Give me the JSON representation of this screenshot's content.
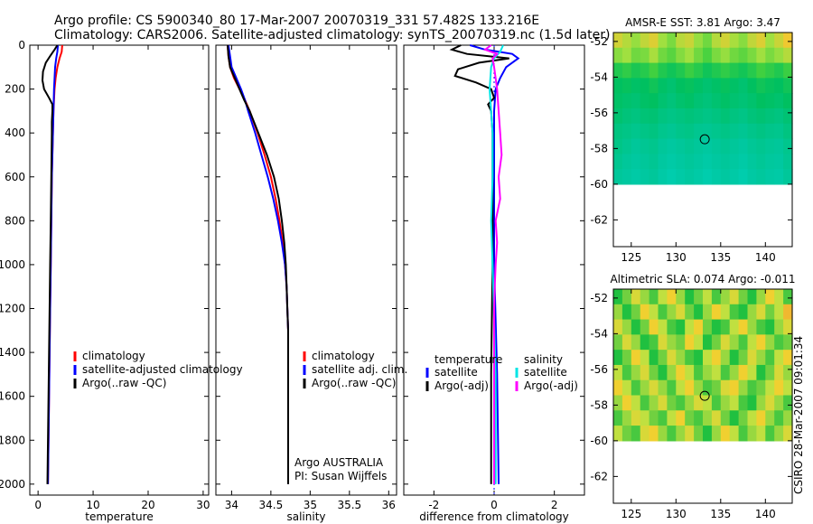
{
  "header": {
    "line1": "Argo profile: CS 5900340_80 17-Mar-2007 20070319_331 57.482S 133.216E",
    "line2": "Climatology: CARS2006. Satellite-adjusted climatology: synTS_20070319.nc (1.5d later)"
  },
  "side_label": "CSIRO 28-Mar-2007 09:01:34",
  "colors": {
    "climatology": "#ff0000",
    "satellite": "#0000ff",
    "argo": "#000000",
    "salinity_satellite": "#00e5e5",
    "salinity_argo": "#ff00ff"
  },
  "chart_data": [
    {
      "type": "line",
      "xlabel": "temperature",
      "ylabel": "",
      "xlim": [
        -1.5,
        31
      ],
      "ylim": [
        2050,
        0
      ],
      "xticks": [
        0,
        10,
        20,
        30
      ],
      "yticks": [
        0,
        200,
        400,
        600,
        800,
        1000,
        1200,
        1400,
        1600,
        1800,
        2000
      ],
      "legend": [
        "climatology",
        "satellite-adjusted climatology",
        "Argo(..raw -QC)"
      ],
      "series": [
        {
          "name": "climatology",
          "color": "#ff0000",
          "depth": [
            0,
            30,
            60,
            100,
            150,
            200,
            300,
            400,
            600,
            800,
            1000,
            1200,
            1400,
            1600,
            1800,
            2000
          ],
          "values": [
            4.4,
            4.3,
            3.9,
            3.5,
            3.2,
            3.0,
            2.8,
            2.7,
            2.5,
            2.4,
            2.3,
            2.2,
            2.1,
            2.0,
            1.9,
            1.8
          ]
        },
        {
          "name": "satellite-adjusted climatology",
          "color": "#0000ff",
          "depth": [
            0,
            30,
            60,
            100,
            150,
            200,
            300,
            400,
            600,
            800,
            1000,
            1200,
            1400,
            1600,
            1800,
            2000
          ],
          "values": [
            3.6,
            3.5,
            3.3,
            3.1,
            3.0,
            2.9,
            2.8,
            2.7,
            2.5,
            2.4,
            2.3,
            2.2,
            2.1,
            2.0,
            1.9,
            1.8
          ]
        },
        {
          "name": "Argo(..raw -QC)",
          "color": "#000000",
          "depth": [
            0,
            20,
            50,
            80,
            120,
            160,
            200,
            240,
            270,
            300,
            350,
            400,
            600,
            800,
            1000,
            1200,
            1400,
            1600,
            1800,
            2000
          ],
          "values": [
            3.5,
            3.0,
            2.2,
            1.4,
            0.9,
            0.8,
            1.1,
            2.0,
            2.6,
            2.6,
            2.5,
            2.5,
            2.4,
            2.3,
            2.2,
            2.1,
            2.0,
            1.9,
            1.8,
            1.7
          ]
        }
      ]
    },
    {
      "type": "line",
      "xlabel": "salinity",
      "ylabel": "",
      "xlim": [
        33.8,
        36.1
      ],
      "ylim": [
        2050,
        0
      ],
      "xticks": [
        34,
        34.5,
        35,
        35.5,
        36
      ],
      "legend": [
        "climatology",
        "satellite adj. clim.",
        "Argo(..raw -QC)"
      ],
      "annotation": [
        "Argo AUSTRALIA",
        "PI: Susan Wijffels"
      ],
      "series": [
        {
          "name": "climatology",
          "color": "#ff0000",
          "depth": [
            0,
            50,
            100,
            150,
            200,
            250,
            300,
            400,
            500,
            600,
            700,
            800,
            900,
            1000,
            1100,
            1200,
            1300,
            1400,
            1600,
            1800,
            2000
          ],
          "values": [
            33.95,
            33.96,
            33.98,
            34.03,
            34.1,
            34.17,
            34.23,
            34.33,
            34.42,
            34.5,
            34.56,
            34.61,
            34.65,
            34.68,
            34.7,
            34.71,
            34.72,
            34.72,
            34.72,
            34.72,
            34.72
          ]
        },
        {
          "name": "satellite adj. clim.",
          "color": "#0000ff",
          "depth": [
            0,
            50,
            100,
            150,
            200,
            250,
            300,
            400,
            500,
            600,
            700,
            800,
            900,
            1000,
            1100,
            1200,
            1300,
            1400,
            1600,
            1800,
            2000
          ],
          "values": [
            33.96,
            33.98,
            34.0,
            34.06,
            34.12,
            34.17,
            34.21,
            34.3,
            34.38,
            34.46,
            34.53,
            34.59,
            34.64,
            34.68,
            34.7,
            34.71,
            34.72,
            34.72,
            34.72,
            34.72,
            34.72
          ]
        },
        {
          "name": "Argo(..raw -QC)",
          "color": "#000000",
          "depth": [
            0,
            50,
            100,
            150,
            200,
            250,
            300,
            400,
            500,
            600,
            700,
            800,
            900,
            1000,
            1100,
            1200,
            1300,
            1400,
            1600,
            1800,
            2000
          ],
          "values": [
            33.95,
            33.96,
            33.98,
            34.04,
            34.1,
            34.16,
            34.23,
            34.34,
            34.45,
            34.54,
            34.6,
            34.64,
            34.67,
            34.69,
            34.7,
            34.71,
            34.72,
            34.72,
            34.72,
            34.72,
            34.72
          ]
        }
      ]
    },
    {
      "type": "line",
      "xlabel": "difference from climatology",
      "ylabel": "",
      "xlim": [
        -3,
        3
      ],
      "ylim": [
        2050,
        0
      ],
      "xticks": [
        -2,
        0,
        2
      ],
      "legend_groups": [
        {
          "heading": "temperature",
          "items": [
            "satellite",
            "Argo(-adj)"
          ]
        },
        {
          "heading": "salinity",
          "items": [
            "satellite",
            "Argo(-adj)"
          ]
        }
      ],
      "series": [
        {
          "name": "temperature satellite",
          "color": "#0000ff",
          "depth": [
            0,
            20,
            40,
            60,
            80,
            100,
            150,
            200,
            300,
            500,
            1000,
            1500,
            2000
          ],
          "values": [
            -0.8,
            -0.3,
            0.6,
            0.8,
            0.6,
            0.4,
            0.2,
            0.05,
            0.0,
            0.0,
            0.0,
            0.1,
            0.15
          ]
        },
        {
          "name": "temperature Argo(-adj)",
          "color": "#000000",
          "depth": [
            0,
            20,
            40,
            60,
            80,
            110,
            140,
            170,
            200,
            240,
            270,
            300,
            400,
            600,
            1000,
            1500,
            2000
          ],
          "values": [
            -1.1,
            -1.4,
            -0.9,
            0.5,
            -0.5,
            -1.2,
            -1.3,
            -0.6,
            -0.1,
            0.0,
            -0.2,
            -0.1,
            -0.05,
            -0.05,
            -0.05,
            -0.1,
            -0.1
          ]
        },
        {
          "name": "salinity satellite",
          "color": "#00e5e5",
          "depth": [
            0,
            30,
            60,
            100,
            200,
            300,
            400,
            600,
            800,
            1000,
            1500,
            2000
          ],
          "values": [
            0.3,
            0.2,
            0.0,
            -0.1,
            -0.15,
            -0.1,
            -0.05,
            -0.05,
            -0.1,
            -0.05,
            0.05,
            0.05
          ]
        },
        {
          "name": "salinity Argo(-adj)",
          "color": "#ff00ff",
          "depth": [
            0,
            20,
            40,
            60,
            100,
            200,
            300,
            400,
            500,
            600,
            700,
            800,
            900,
            1000,
            1100,
            1200,
            1500,
            2000
          ],
          "values": [
            -0.1,
            -0.3,
            0.1,
            -0.05,
            0.0,
            0.1,
            0.15,
            0.2,
            0.25,
            0.15,
            0.2,
            0.05,
            0.1,
            0.05,
            0.02,
            0.0,
            0.0,
            0.0
          ]
        }
      ]
    },
    {
      "type": "heatmap",
      "title": "AMSR-E SST: 3.81  Argo: 3.47",
      "xlim": [
        123,
        143
      ],
      "ylim": [
        -63.5,
        -51.5
      ],
      "xticks": [
        125,
        130,
        135,
        140
      ],
      "yticks": [
        -52,
        -54,
        -56,
        -58,
        -60,
        -62
      ],
      "data_extent_lat": [
        -60,
        -51.5
      ],
      "marker": {
        "lon": 133.216,
        "lat": -57.482
      },
      "colorscale": [
        "#00e0e0",
        "#00c8a0",
        "#00c060",
        "#40d040",
        "#a0e040",
        "#f0c830"
      ],
      "rows": [
        [
          0.92,
          0.85,
          0.78,
          0.88,
          0.95,
          0.8,
          0.72,
          0.86,
          0.9,
          0.78,
          0.7,
          0.85,
          0.92,
          0.82,
          0.75,
          0.88,
          0.95,
          0.8,
          0.9,
          1.0
        ],
        [
          0.75,
          0.8,
          0.7,
          0.72,
          0.82,
          0.7,
          0.65,
          0.74,
          0.8,
          0.7,
          0.62,
          0.72,
          0.78,
          0.7,
          0.66,
          0.72,
          0.8,
          0.72,
          0.78,
          0.85
        ],
        [
          0.5,
          0.55,
          0.48,
          0.52,
          0.6,
          0.5,
          0.45,
          0.5,
          0.58,
          0.52,
          0.45,
          0.5,
          0.55,
          0.5,
          0.46,
          0.52,
          0.6,
          0.55,
          0.5,
          0.58
        ],
        [
          0.4,
          0.42,
          0.38,
          0.4,
          0.45,
          0.38,
          0.35,
          0.4,
          0.42,
          0.38,
          0.35,
          0.38,
          0.42,
          0.38,
          0.35,
          0.4,
          0.45,
          0.42,
          0.4,
          0.45
        ],
        [
          0.38,
          0.36,
          0.34,
          0.38,
          0.4,
          0.35,
          0.32,
          0.36,
          0.38,
          0.34,
          0.32,
          0.35,
          0.38,
          0.35,
          0.33,
          0.36,
          0.4,
          0.38,
          0.36,
          0.4
        ],
        [
          0.35,
          0.32,
          0.3,
          0.33,
          0.34,
          0.3,
          0.28,
          0.3,
          0.32,
          0.3,
          0.28,
          0.3,
          0.33,
          0.3,
          0.28,
          0.32,
          0.34,
          0.32,
          0.3,
          0.34
        ],
        [
          0.3,
          0.28,
          0.26,
          0.28,
          0.3,
          0.26,
          0.24,
          0.27,
          0.28,
          0.25,
          0.24,
          0.26,
          0.28,
          0.26,
          0.24,
          0.27,
          0.29,
          0.27,
          0.26,
          0.3
        ],
        [
          0.28,
          0.25,
          0.22,
          0.24,
          0.26,
          0.22,
          0.2,
          0.22,
          0.24,
          0.22,
          0.2,
          0.22,
          0.24,
          0.22,
          0.2,
          0.23,
          0.25,
          0.23,
          0.22,
          0.26
        ],
        [
          0.25,
          0.22,
          0.2,
          0.22,
          0.24,
          0.2,
          0.18,
          0.2,
          0.22,
          0.2,
          0.18,
          0.2,
          0.22,
          0.2,
          0.18,
          0.21,
          0.23,
          0.21,
          0.2,
          0.24
        ],
        [
          0.22,
          0.2,
          0.18,
          0.2,
          0.22,
          0.18,
          0.16,
          0.18,
          0.2,
          0.18,
          0.16,
          0.18,
          0.2,
          0.18,
          0.16,
          0.19,
          0.21,
          0.19,
          0.18,
          0.22
        ]
      ]
    },
    {
      "type": "heatmap",
      "title": "Altimetric SLA: 0.074  Argo: -0.011",
      "xlim": [
        123,
        143
      ],
      "ylim": [
        -63.5,
        -51.5
      ],
      "xticks": [
        125,
        130,
        135,
        140
      ],
      "yticks": [
        -52,
        -54,
        -56,
        -58,
        -60,
        -62
      ],
      "data_extent_lat": [
        -60,
        -51.5
      ],
      "marker": {
        "lon": 133.216,
        "lat": -57.482
      },
      "colorscale": [
        "#00b050",
        "#20c040",
        "#70d040",
        "#c0e040",
        "#f0d030",
        "#f0a030"
      ],
      "rows": [
        [
          0.2,
          0.4,
          0.7,
          0.5,
          0.3,
          0.6,
          0.8,
          0.5,
          0.2,
          0.4,
          0.6,
          0.3,
          0.5,
          0.7,
          0.4,
          0.2,
          0.5,
          0.8,
          0.6,
          0.3
        ],
        [
          0.5,
          0.2,
          0.4,
          0.8,
          0.6,
          0.3,
          0.5,
          0.7,
          0.4,
          0.2,
          0.5,
          0.8,
          0.6,
          0.3,
          0.2,
          0.5,
          0.7,
          0.4,
          0.6,
          0.9
        ],
        [
          0.7,
          0.5,
          0.2,
          0.4,
          0.8,
          0.6,
          0.3,
          0.2,
          0.6,
          0.8,
          0.4,
          0.2,
          0.3,
          0.6,
          0.8,
          0.5,
          0.3,
          0.2,
          0.5,
          0.7
        ],
        [
          0.4,
          0.7,
          0.5,
          0.2,
          0.3,
          0.7,
          0.5,
          0.4,
          0.8,
          0.6,
          0.2,
          0.4,
          0.7,
          0.5,
          0.3,
          0.6,
          0.8,
          0.5,
          0.3,
          0.4
        ],
        [
          0.2,
          0.4,
          0.8,
          0.6,
          0.2,
          0.4,
          0.7,
          0.5,
          0.3,
          0.2,
          0.6,
          0.8,
          0.5,
          0.2,
          0.4,
          0.7,
          0.5,
          0.3,
          0.6,
          0.8
        ],
        [
          0.6,
          0.3,
          0.5,
          0.7,
          0.4,
          0.2,
          0.5,
          0.8,
          0.6,
          0.3,
          0.5,
          0.6,
          0.3,
          0.5,
          0.8,
          0.6,
          0.2,
          0.4,
          0.7,
          0.5
        ],
        [
          0.8,
          0.6,
          0.3,
          0.5,
          0.7,
          0.5,
          0.3,
          0.6,
          0.8,
          0.5,
          0.3,
          0.4,
          0.7,
          0.8,
          0.5,
          0.3,
          0.4,
          0.6,
          0.8,
          0.6
        ],
        [
          0.5,
          0.8,
          0.6,
          0.3,
          0.5,
          0.7,
          0.4,
          0.3,
          0.5,
          0.7,
          0.6,
          0.3,
          0.5,
          0.6,
          0.3,
          0.2,
          0.5,
          0.7,
          0.5,
          0.3
        ],
        [
          0.3,
          0.5,
          0.7,
          0.6,
          0.4,
          0.3,
          0.6,
          0.8,
          0.4,
          0.3,
          0.5,
          0.7,
          0.4,
          0.2,
          0.4,
          0.6,
          0.8,
          0.5,
          0.3,
          0.5
        ],
        [
          0.6,
          0.4,
          0.3,
          0.7,
          0.8,
          0.5,
          0.3,
          0.5,
          0.7,
          0.4,
          0.2,
          0.5,
          0.8,
          0.6,
          0.3,
          0.5,
          0.6,
          0.3,
          0.5,
          0.7
        ]
      ]
    }
  ]
}
